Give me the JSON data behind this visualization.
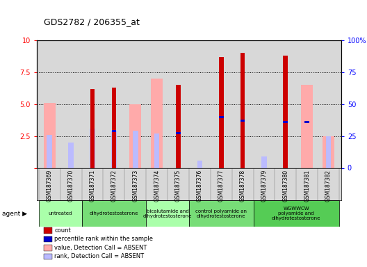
{
  "title": "GDS2782 / 206355_at",
  "samples": [
    "GSM187369",
    "GSM187370",
    "GSM187371",
    "GSM187372",
    "GSM187373",
    "GSM187374",
    "GSM187375",
    "GSM187376",
    "GSM187377",
    "GSM187378",
    "GSM187379",
    "GSM187380",
    "GSM187381",
    "GSM187382"
  ],
  "count": [
    null,
    null,
    6.2,
    6.3,
    null,
    null,
    6.5,
    null,
    8.7,
    9.0,
    null,
    8.8,
    null,
    null
  ],
  "percentile_rank": [
    null,
    null,
    null,
    2.9,
    null,
    null,
    2.75,
    null,
    4.0,
    3.7,
    null,
    3.6,
    3.6,
    null
  ],
  "value_absent": [
    5.1,
    null,
    null,
    null,
    5.0,
    7.0,
    null,
    null,
    null,
    null,
    null,
    null,
    6.5,
    2.5
  ],
  "rank_absent": [
    2.6,
    2.0,
    3.1,
    2.9,
    2.9,
    2.7,
    null,
    0.6,
    null,
    null,
    0.9,
    null,
    null,
    2.5
  ],
  "agents": [
    {
      "label": "untreated",
      "cols": [
        0,
        1
      ],
      "color": "#aaffaa"
    },
    {
      "label": "dihydrotestosterone",
      "cols": [
        2,
        3,
        4
      ],
      "color": "#77dd77"
    },
    {
      "label": "bicalutamide and\ndihydrotestosterone",
      "cols": [
        5,
        6
      ],
      "color": "#aaffaa"
    },
    {
      "label": "control polyamide an\ndihydrotestosterone",
      "cols": [
        7,
        8,
        9
      ],
      "color": "#77dd77"
    },
    {
      "label": "WGWWCW\npolyamide and\ndihydrotestosterone",
      "cols": [
        10,
        11,
        12,
        13
      ],
      "color": "#55cc55"
    }
  ],
  "ylim": [
    0,
    10
  ],
  "y2lim": [
    0,
    100
  ],
  "yticks": [
    0,
    2.5,
    5.0,
    7.5,
    10
  ],
  "y2ticks": [
    0,
    25,
    50,
    75,
    100
  ],
  "color_count": "#cc0000",
  "color_rank": "#0000cc",
  "color_value_absent": "#ffaaaa",
  "color_rank_absent": "#bbbbff",
  "plot_bg": "#d8d8d8",
  "bar_width": 0.55
}
